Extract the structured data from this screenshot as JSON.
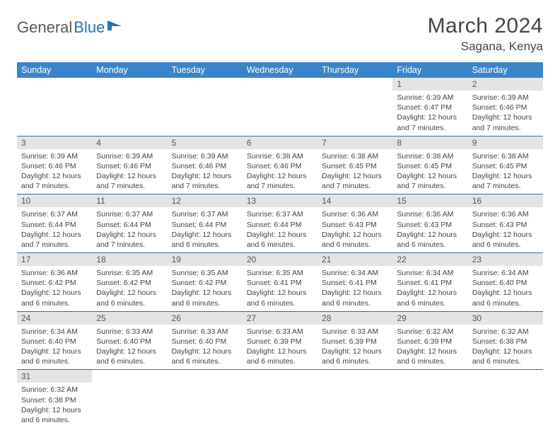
{
  "brand": {
    "part1": "General",
    "part2": "Blue"
  },
  "title": "March 2024",
  "location": "Sagana, Kenya",
  "dayHeaders": [
    "Sunday",
    "Monday",
    "Tuesday",
    "Wednesday",
    "Thursday",
    "Friday",
    "Saturday"
  ],
  "colors": {
    "headerBg": "#3a85c9",
    "headerText": "#ffffff",
    "rowBorder": "#2a6fb5",
    "dayBg": "#e4e4e4",
    "brandBlue": "#2a6fb5",
    "textGray": "#454545"
  },
  "weeks": [
    [
      {
        "n": "",
        "lines": []
      },
      {
        "n": "",
        "lines": []
      },
      {
        "n": "",
        "lines": []
      },
      {
        "n": "",
        "lines": []
      },
      {
        "n": "",
        "lines": []
      },
      {
        "n": "1",
        "lines": [
          "Sunrise: 6:39 AM",
          "Sunset: 6:47 PM",
          "Daylight: 12 hours and 7 minutes."
        ]
      },
      {
        "n": "2",
        "lines": [
          "Sunrise: 6:39 AM",
          "Sunset: 6:46 PM",
          "Daylight: 12 hours and 7 minutes."
        ]
      }
    ],
    [
      {
        "n": "3",
        "lines": [
          "Sunrise: 6:39 AM",
          "Sunset: 6:46 PM",
          "Daylight: 12 hours and 7 minutes."
        ]
      },
      {
        "n": "4",
        "lines": [
          "Sunrise: 6:39 AM",
          "Sunset: 6:46 PM",
          "Daylight: 12 hours and 7 minutes."
        ]
      },
      {
        "n": "5",
        "lines": [
          "Sunrise: 6:39 AM",
          "Sunset: 6:46 PM",
          "Daylight: 12 hours and 7 minutes."
        ]
      },
      {
        "n": "6",
        "lines": [
          "Sunrise: 6:38 AM",
          "Sunset: 6:46 PM",
          "Daylight: 12 hours and 7 minutes."
        ]
      },
      {
        "n": "7",
        "lines": [
          "Sunrise: 6:38 AM",
          "Sunset: 6:45 PM",
          "Daylight: 12 hours and 7 minutes."
        ]
      },
      {
        "n": "8",
        "lines": [
          "Sunrise: 6:38 AM",
          "Sunset: 6:45 PM",
          "Daylight: 12 hours and 7 minutes."
        ]
      },
      {
        "n": "9",
        "lines": [
          "Sunrise: 6:38 AM",
          "Sunset: 6:45 PM",
          "Daylight: 12 hours and 7 minutes."
        ]
      }
    ],
    [
      {
        "n": "10",
        "lines": [
          "Sunrise: 6:37 AM",
          "Sunset: 6:44 PM",
          "Daylight: 12 hours and 7 minutes."
        ]
      },
      {
        "n": "11",
        "lines": [
          "Sunrise: 6:37 AM",
          "Sunset: 6:44 PM",
          "Daylight: 12 hours and 7 minutes."
        ]
      },
      {
        "n": "12",
        "lines": [
          "Sunrise: 6:37 AM",
          "Sunset: 6:44 PM",
          "Daylight: 12 hours and 6 minutes."
        ]
      },
      {
        "n": "13",
        "lines": [
          "Sunrise: 6:37 AM",
          "Sunset: 6:44 PM",
          "Daylight: 12 hours and 6 minutes."
        ]
      },
      {
        "n": "14",
        "lines": [
          "Sunrise: 6:36 AM",
          "Sunset: 6:43 PM",
          "Daylight: 12 hours and 6 minutes."
        ]
      },
      {
        "n": "15",
        "lines": [
          "Sunrise: 6:36 AM",
          "Sunset: 6:43 PM",
          "Daylight: 12 hours and 6 minutes."
        ]
      },
      {
        "n": "16",
        "lines": [
          "Sunrise: 6:36 AM",
          "Sunset: 6:43 PM",
          "Daylight: 12 hours and 6 minutes."
        ]
      }
    ],
    [
      {
        "n": "17",
        "lines": [
          "Sunrise: 6:36 AM",
          "Sunset: 6:42 PM",
          "Daylight: 12 hours and 6 minutes."
        ]
      },
      {
        "n": "18",
        "lines": [
          "Sunrise: 6:35 AM",
          "Sunset: 6:42 PM",
          "Daylight: 12 hours and 6 minutes."
        ]
      },
      {
        "n": "19",
        "lines": [
          "Sunrise: 6:35 AM",
          "Sunset: 6:42 PM",
          "Daylight: 12 hours and 6 minutes."
        ]
      },
      {
        "n": "20",
        "lines": [
          "Sunrise: 6:35 AM",
          "Sunset: 6:41 PM",
          "Daylight: 12 hours and 6 minutes."
        ]
      },
      {
        "n": "21",
        "lines": [
          "Sunrise: 6:34 AM",
          "Sunset: 6:41 PM",
          "Daylight: 12 hours and 6 minutes."
        ]
      },
      {
        "n": "22",
        "lines": [
          "Sunrise: 6:34 AM",
          "Sunset: 6:41 PM",
          "Daylight: 12 hours and 6 minutes."
        ]
      },
      {
        "n": "23",
        "lines": [
          "Sunrise: 6:34 AM",
          "Sunset: 6:40 PM",
          "Daylight: 12 hours and 6 minutes."
        ]
      }
    ],
    [
      {
        "n": "24",
        "lines": [
          "Sunrise: 6:34 AM",
          "Sunset: 6:40 PM",
          "Daylight: 12 hours and 6 minutes."
        ]
      },
      {
        "n": "25",
        "lines": [
          "Sunrise: 6:33 AM",
          "Sunset: 6:40 PM",
          "Daylight: 12 hours and 6 minutes."
        ]
      },
      {
        "n": "26",
        "lines": [
          "Sunrise: 6:33 AM",
          "Sunset: 6:40 PM",
          "Daylight: 12 hours and 6 minutes."
        ]
      },
      {
        "n": "27",
        "lines": [
          "Sunrise: 6:33 AM",
          "Sunset: 6:39 PM",
          "Daylight: 12 hours and 6 minutes."
        ]
      },
      {
        "n": "28",
        "lines": [
          "Sunrise: 6:33 AM",
          "Sunset: 6:39 PM",
          "Daylight: 12 hours and 6 minutes."
        ]
      },
      {
        "n": "29",
        "lines": [
          "Sunrise: 6:32 AM",
          "Sunset: 6:39 PM",
          "Daylight: 12 hours and 6 minutes."
        ]
      },
      {
        "n": "30",
        "lines": [
          "Sunrise: 6:32 AM",
          "Sunset: 6:38 PM",
          "Daylight: 12 hours and 6 minutes."
        ]
      }
    ],
    [
      {
        "n": "31",
        "lines": [
          "Sunrise: 6:32 AM",
          "Sunset: 6:38 PM",
          "Daylight: 12 hours and 6 minutes."
        ]
      },
      {
        "n": "",
        "lines": []
      },
      {
        "n": "",
        "lines": []
      },
      {
        "n": "",
        "lines": []
      },
      {
        "n": "",
        "lines": []
      },
      {
        "n": "",
        "lines": []
      },
      {
        "n": "",
        "lines": []
      }
    ]
  ]
}
